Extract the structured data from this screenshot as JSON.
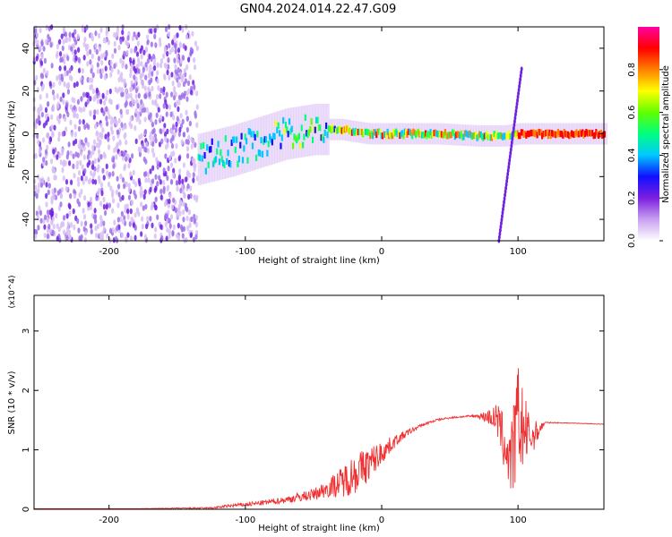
{
  "title": "GN04.2024.014.22.47.G09",
  "chart_data": [
    {
      "type": "heatmap",
      "xlabel": "Height of straight line (km)",
      "ylabel": "Frequency (Hz)",
      "xlim": [
        -255,
        163
      ],
      "ylim": [
        -50,
        50
      ],
      "xticks": [
        -200,
        -100,
        0,
        100
      ],
      "yticks": [
        -40,
        -20,
        0,
        20,
        40
      ],
      "colorbar": {
        "label": "Normalized spectral amplitude",
        "range": [
          0,
          1
        ],
        "ticks": [
          "0.0",
          "0.2",
          "0.4",
          "0.6",
          "0.8"
        ],
        "colors": [
          "#ffffff",
          "#c8a0f0",
          "#7b1fe0",
          "#1010ff",
          "#00c8ff",
          "#00ff80",
          "#60ff00",
          "#ffff00",
          "#ff8000",
          "#ff0000",
          "#ff00a0"
        ]
      },
      "features": [
        {
          "name": "noise",
          "x_range": [
            -255,
            -135
          ],
          "freq_range": [
            -50,
            50
          ]
        },
        {
          "name": "signal",
          "x": [
            -135,
            -110,
            -90,
            -70,
            -50,
            -30,
            -10,
            10,
            40,
            70,
            90,
            100,
            163
          ],
          "freq": [
            -12,
            -8,
            -4,
            0,
            2,
            2,
            0,
            0,
            0,
            -1,
            -1,
            0,
            0
          ]
        },
        {
          "name": "drift-line",
          "x": [
            86,
            103
          ],
          "freq": [
            -50,
            32
          ]
        }
      ]
    },
    {
      "type": "line",
      "xlabel": "Height of straight line (km)",
      "ylabel": "SNR (10 * v/v)",
      "yunit": "(x10^4)",
      "xlim": [
        -255,
        163
      ],
      "ylim": [
        0,
        3.6
      ],
      "xticks": [
        -200,
        -100,
        0,
        100
      ],
      "yticks": [
        0,
        1,
        2,
        3
      ],
      "series": [
        {
          "x": [
            -255,
            -180,
            -125,
            -110,
            -90,
            -70,
            -50,
            -40,
            -30,
            -20,
            -10,
            0,
            10,
            20,
            30,
            40,
            50,
            60,
            70,
            80,
            85,
            90,
            95,
            100,
            105,
            110,
            120,
            140,
            163
          ],
          "y": [
            0.01,
            0.01,
            0.02,
            0.06,
            0.1,
            0.16,
            0.25,
            0.35,
            0.45,
            0.6,
            0.75,
            0.95,
            1.15,
            1.3,
            1.42,
            1.5,
            1.54,
            1.56,
            1.57,
            1.55,
            1.5,
            1.1,
            0.8,
            1.5,
            1.3,
            1.2,
            1.46,
            1.45,
            1.43
          ],
          "amp": [
            0,
            0,
            0.03,
            0.06,
            0.08,
            0.12,
            0.2,
            0.3,
            0.5,
            0.7,
            0.6,
            0.4,
            0.2,
            0.1,
            0.05,
            0.04,
            0.03,
            0.03,
            0.05,
            0.3,
            0.6,
            1.0,
            1.3,
            2.0,
            1.2,
            0.6,
            0.02,
            0.01,
            0.01
          ],
          "color": "#f03030"
        }
      ]
    }
  ]
}
